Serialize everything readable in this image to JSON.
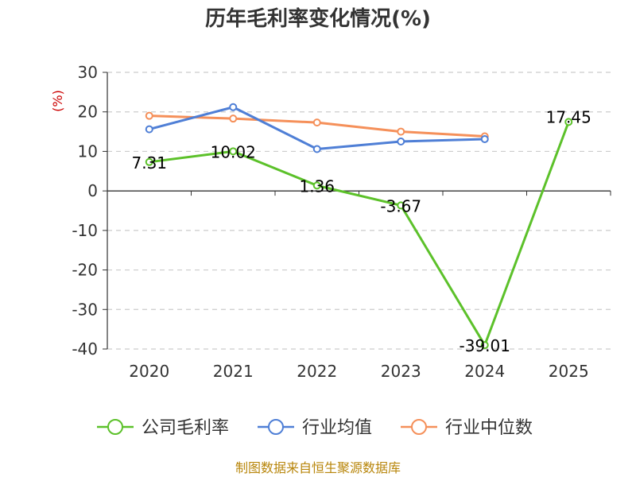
{
  "chart_data": {
    "type": "line",
    "title": "历年毛利率变化情况(%)",
    "ylabel": "(%)",
    "xlabel": "",
    "ylim": [
      -40,
      30
    ],
    "yticks": [
      30,
      20,
      10,
      0,
      -10,
      -20,
      -30,
      -40
    ],
    "grid": true,
    "legend_position": "bottom",
    "categories": [
      "2020",
      "2021",
      "2022",
      "2023",
      "2024",
      "2025"
    ],
    "series": [
      {
        "name": "公司毛利率",
        "color": "#5cc12a",
        "values": [
          7.31,
          10.02,
          1.36,
          -3.67,
          -39.01,
          17.45
        ],
        "data_labels": [
          "7.31",
          "10.02",
          "1.36",
          "-3.67",
          "-39.01",
          "17.45"
        ]
      },
      {
        "name": "行业均值",
        "color": "#4f7fd6",
        "values": [
          15.6,
          21.2,
          10.6,
          12.5,
          13.1,
          null
        ]
      },
      {
        "name": "行业中位数",
        "color": "#f5905a",
        "values": [
          19.0,
          18.3,
          17.3,
          15.0,
          13.8,
          null
        ]
      }
    ],
    "source": "制图数据来自恒生聚源数据库"
  }
}
